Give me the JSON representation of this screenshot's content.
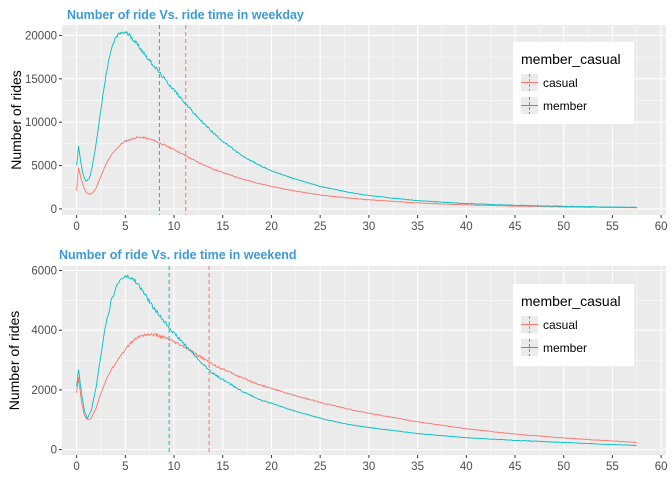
{
  "colors": {
    "casual": "#F8766D",
    "member": "#00BFC4",
    "title": "#3C9BD6",
    "panel_bg": "#EBEBEB",
    "grid": "#FFFFFF",
    "tick_text": "#4D4D4D",
    "tick_mark": "#333333"
  },
  "legend": {
    "title": "member_casual",
    "items": [
      "casual",
      "member"
    ]
  },
  "chart_data": [
    {
      "type": "line",
      "title": "Number of ride Vs. ride time in weekday",
      "xlabel": "",
      "ylabel": "Number of rides",
      "xlim": [
        -1.5,
        60.5
      ],
      "ylim": [
        -700,
        21200
      ],
      "xticks": [
        0,
        5,
        10,
        15,
        20,
        25,
        30,
        35,
        40,
        45,
        50,
        55,
        60
      ],
      "yticks": [
        0,
        5000,
        10000,
        15000,
        20000
      ],
      "grid": true,
      "legend_position": "top-right",
      "vlines": [
        {
          "series": "casual",
          "x": 11.2,
          "style": "dashed"
        },
        {
          "series": "member",
          "x": 8.5,
          "style": "dashed"
        }
      ],
      "series": [
        {
          "name": "casual",
          "points": [
            [
              0,
              2100
            ],
            [
              0.2,
              4800
            ],
            [
              0.5,
              3300
            ],
            [
              0.8,
              2300
            ],
            [
              1,
              1900
            ],
            [
              1.3,
              1700
            ],
            [
              1.6,
              1800
            ],
            [
              2,
              2400
            ],
            [
              2.5,
              3800
            ],
            [
              3,
              5100
            ],
            [
              3.5,
              6100
            ],
            [
              4,
              6800
            ],
            [
              4.5,
              7400
            ],
            [
              5,
              7800
            ],
            [
              5.5,
              8000
            ],
            [
              6,
              8200
            ],
            [
              6.5,
              8250
            ],
            [
              7,
              8200
            ],
            [
              7.5,
              8050
            ],
            [
              8,
              7850
            ],
            [
              9,
              7350
            ],
            [
              10,
              6850
            ],
            [
              11,
              6250
            ],
            [
              12,
              5650
            ],
            [
              13,
              5100
            ],
            [
              14,
              4600
            ],
            [
              15,
              4200
            ],
            [
              17,
              3450
            ],
            [
              19,
              2850
            ],
            [
              20,
              2600
            ],
            [
              22,
              2150
            ],
            [
              25,
              1600
            ],
            [
              28,
              1250
            ],
            [
              30,
              1050
            ],
            [
              35,
              690
            ],
            [
              40,
              460
            ],
            [
              45,
              330
            ],
            [
              50,
              240
            ],
            [
              55,
              170
            ],
            [
              57.5,
              150
            ]
          ]
        },
        {
          "name": "member",
          "points": [
            [
              0,
              5000
            ],
            [
              0.2,
              7200
            ],
            [
              0.4,
              5600
            ],
            [
              0.6,
              4300
            ],
            [
              0.8,
              3500
            ],
            [
              1,
              3200
            ],
            [
              1.3,
              3500
            ],
            [
              1.6,
              4800
            ],
            [
              2,
              7500
            ],
            [
              2.5,
              11500
            ],
            [
              3,
              15300
            ],
            [
              3.5,
              18200
            ],
            [
              4,
              19700
            ],
            [
              4.5,
              20300
            ],
            [
              5,
              20300
            ],
            [
              5.5,
              20000
            ],
            [
              6,
              19300
            ],
            [
              6.5,
              18600
            ],
            [
              7,
              17800
            ],
            [
              8,
              16400
            ],
            [
              9,
              15000
            ],
            [
              10,
              13700
            ],
            [
              11,
              12400
            ],
            [
              12,
              11100
            ],
            [
              13,
              9900
            ],
            [
              14,
              8800
            ],
            [
              15,
              7800
            ],
            [
              17,
              6100
            ],
            [
              19,
              4900
            ],
            [
              20,
              4400
            ],
            [
              22,
              3600
            ],
            [
              25,
              2600
            ],
            [
              28,
              1900
            ],
            [
              30,
              1550
            ],
            [
              35,
              950
            ],
            [
              40,
              620
            ],
            [
              45,
              420
            ],
            [
              50,
              300
            ],
            [
              55,
              210
            ],
            [
              57.5,
              180
            ]
          ]
        }
      ]
    },
    {
      "type": "line",
      "title": "Number of ride Vs. ride time in weekend",
      "xlabel": "",
      "ylabel": "Number of rides",
      "xlim": [
        -1.5,
        60.5
      ],
      "ylim": [
        -180,
        6150
      ],
      "xticks": [
        0,
        5,
        10,
        15,
        20,
        25,
        30,
        35,
        40,
        45,
        50,
        55,
        60
      ],
      "yticks": [
        0,
        2000,
        4000,
        6000
      ],
      "grid": true,
      "legend_position": "top-right",
      "vlines": [
        {
          "series": "casual",
          "x": 13.6,
          "style": "dashed"
        },
        {
          "series": "member",
          "x": 9.5,
          "style": "dashed"
        }
      ],
      "series": [
        {
          "name": "casual",
          "points": [
            [
              0,
              1900
            ],
            [
              0.2,
              2400
            ],
            [
              0.5,
              1600
            ],
            [
              0.8,
              1150
            ],
            [
              1.1,
              1000
            ],
            [
              1.5,
              1050
            ],
            [
              2,
              1400
            ],
            [
              2.5,
              1900
            ],
            [
              3,
              2300
            ],
            [
              3.5,
              2650
            ],
            [
              4,
              2900
            ],
            [
              4.5,
              3150
            ],
            [
              5,
              3350
            ],
            [
              5.5,
              3550
            ],
            [
              6,
              3700
            ],
            [
              6.5,
              3800
            ],
            [
              7,
              3850
            ],
            [
              7.5,
              3850
            ],
            [
              8,
              3850
            ],
            [
              9,
              3750
            ],
            [
              10,
              3600
            ],
            [
              11,
              3450
            ],
            [
              12,
              3250
            ],
            [
              13,
              3050
            ],
            [
              14,
              2850
            ],
            [
              15,
              2700
            ],
            [
              17,
              2400
            ],
            [
              19,
              2150
            ],
            [
              20,
              2050
            ],
            [
              22,
              1850
            ],
            [
              25,
              1580
            ],
            [
              28,
              1350
            ],
            [
              30,
              1220
            ],
            [
              35,
              930
            ],
            [
              40,
              700
            ],
            [
              45,
              520
            ],
            [
              50,
              390
            ],
            [
              55,
              290
            ],
            [
              57.5,
              240
            ]
          ]
        },
        {
          "name": "member",
          "points": [
            [
              0,
              2100
            ],
            [
              0.2,
              2700
            ],
            [
              0.5,
              1900
            ],
            [
              0.8,
              1300
            ],
            [
              1.1,
              1050
            ],
            [
              1.5,
              1300
            ],
            [
              2,
              2100
            ],
            [
              2.5,
              3200
            ],
            [
              3,
              4200
            ],
            [
              3.5,
              4900
            ],
            [
              4,
              5400
            ],
            [
              4.5,
              5700
            ],
            [
              5,
              5800
            ],
            [
              5.5,
              5750
            ],
            [
              6,
              5650
            ],
            [
              6.5,
              5450
            ],
            [
              7,
              5200
            ],
            [
              7.5,
              4950
            ],
            [
              8,
              4700
            ],
            [
              9,
              4300
            ],
            [
              10,
              3900
            ],
            [
              11,
              3550
            ],
            [
              12,
              3200
            ],
            [
              13,
              2850
            ],
            [
              14,
              2550
            ],
            [
              15,
              2350
            ],
            [
              17,
              1950
            ],
            [
              19,
              1650
            ],
            [
              20,
              1550
            ],
            [
              22,
              1330
            ],
            [
              25,
              1050
            ],
            [
              28,
              840
            ],
            [
              30,
              740
            ],
            [
              35,
              540
            ],
            [
              40,
              400
            ],
            [
              45,
              310
            ],
            [
              50,
              240
            ],
            [
              55,
              170
            ],
            [
              57.5,
              140
            ]
          ]
        }
      ]
    }
  ]
}
